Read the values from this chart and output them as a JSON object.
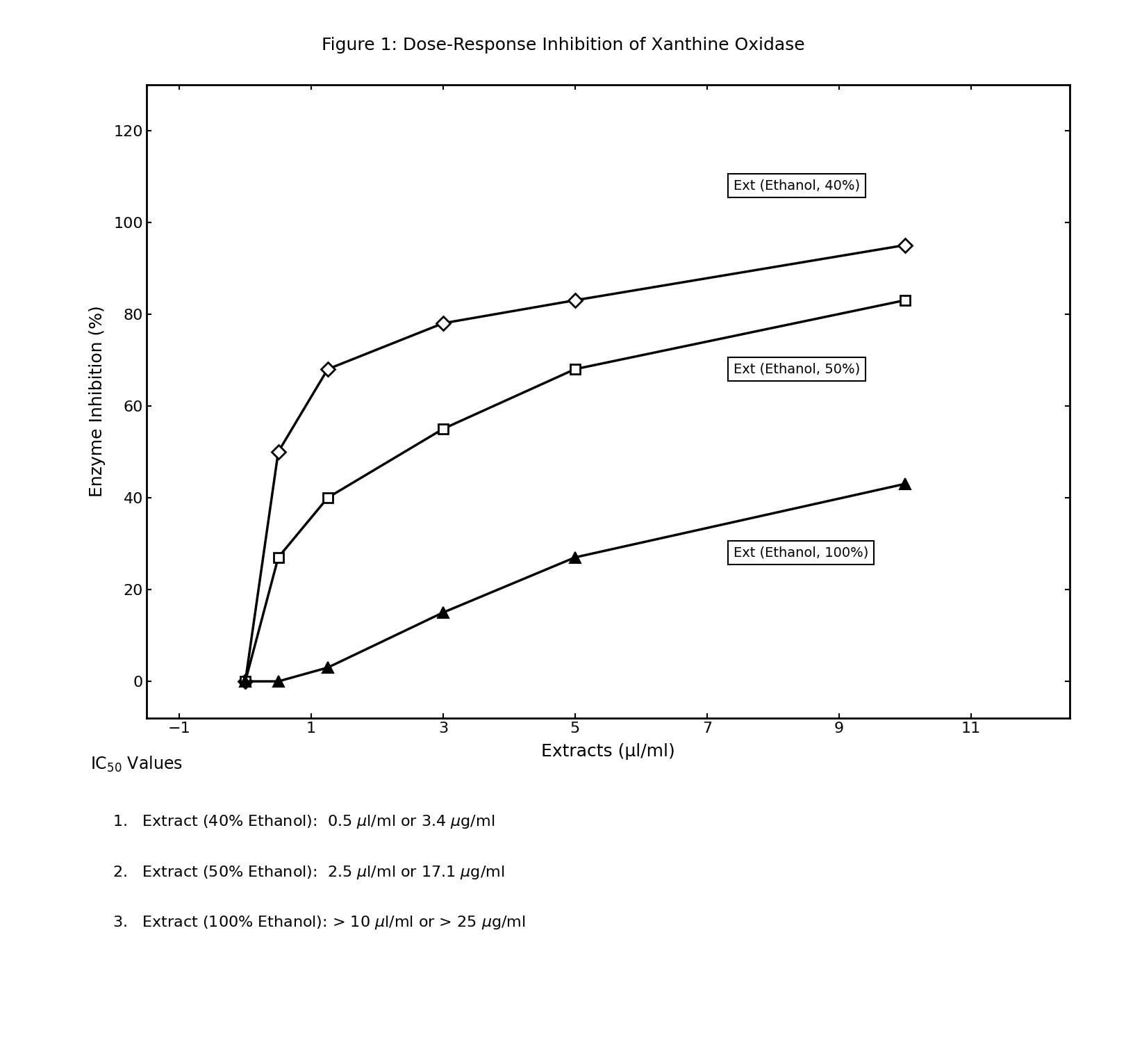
{
  "title": "Figure 1: Dose-Response Inhibition of Xanthine Oxidase",
  "xlabel": "Extracts (µl/ml)",
  "ylabel": "Enzyme Inhibition (%)",
  "xlim": [
    -1.5,
    12.5
  ],
  "ylim": [
    -8,
    130
  ],
  "xticks": [
    -1,
    1,
    3,
    5,
    7,
    9,
    11
  ],
  "yticks": [
    0,
    20,
    40,
    60,
    80,
    100,
    120
  ],
  "series": [
    {
      "label": "Ext (Ethanol, 40%)",
      "x": [
        0,
        0.5,
        1.25,
        3,
        5,
        10
      ],
      "y": [
        0,
        50,
        68,
        78,
        83,
        95
      ],
      "marker": "D",
      "markersize": 10,
      "markerfacecolor": "white",
      "markeredgecolor": "black",
      "markeredgewidth": 2.0,
      "color": "black",
      "linewidth": 2.5,
      "ann_x": 7.4,
      "ann_y": 108,
      "ann_text": "Ext (Ethanol, 40%)"
    },
    {
      "label": "Ext (Ethanol, 50%)",
      "x": [
        0,
        0.5,
        1.25,
        3,
        5,
        10
      ],
      "y": [
        0,
        27,
        40,
        55,
        68,
        83
      ],
      "marker": "s",
      "markersize": 10,
      "markerfacecolor": "white",
      "markeredgecolor": "black",
      "markeredgewidth": 2.0,
      "color": "black",
      "linewidth": 2.5,
      "ann_x": 7.4,
      "ann_y": 68,
      "ann_text": "Ext (Ethanol, 50%)"
    },
    {
      "label": "Ext (Ethanol, 100%)",
      "x": [
        0,
        0.5,
        1.25,
        3,
        5,
        10
      ],
      "y": [
        0,
        0,
        3,
        15,
        27,
        43
      ],
      "marker": "^",
      "markersize": 11,
      "markerfacecolor": "black",
      "markeredgecolor": "black",
      "markeredgewidth": 1.5,
      "color": "black",
      "linewidth": 2.5,
      "ann_x": 7.4,
      "ann_y": 28,
      "ann_text": "Ext (Ethanol, 100%)"
    }
  ],
  "bg_color": "white",
  "text_color": "black",
  "axis_font_size": 18,
  "title_font_size": 18,
  "tick_font_size": 16,
  "annotation_font_size": 14,
  "ic50_font_size": 17,
  "ic50_item_font_size": 16
}
